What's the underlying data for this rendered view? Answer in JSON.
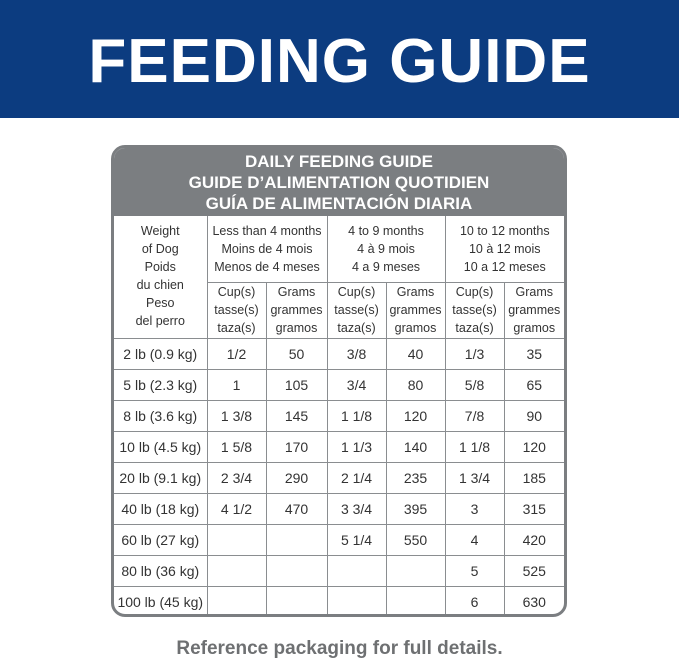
{
  "header": {
    "title": "FEEDING GUIDE"
  },
  "table": {
    "title_lines": [
      "DAILY FEEDING GUIDE",
      "GUIDE D’ALIMENTATION QUOTIDIEN",
      "GUÍA DE ALIMENTACIÓN DIARIA"
    ],
    "weight_header": [
      "Weight",
      "of Dog",
      "Poids",
      "du chien",
      "Peso",
      "del perro"
    ],
    "age_groups": [
      [
        "Less than 4 months",
        "Moins de 4 mois",
        "Menos de 4 meses"
      ],
      [
        "4 to 9 months",
        "4 à 9 mois",
        "4 a 9 meses"
      ],
      [
        "10 to 12 months",
        "10 à 12 mois",
        "10 a 12 meses"
      ]
    ],
    "unit_headers": [
      [
        "Cup(s)",
        "tasse(s)",
        "taza(s)"
      ],
      [
        "Grams",
        "grammes",
        "gramos"
      ]
    ],
    "rows": [
      [
        "2 lb (0.9 kg)",
        "1/2",
        "50",
        "3/8",
        "40",
        "1/3",
        "35"
      ],
      [
        "5 lb (2.3 kg)",
        "1",
        "105",
        "3/4",
        "80",
        "5/8",
        "65"
      ],
      [
        "8 lb (3.6 kg)",
        "1 3/8",
        "145",
        "1 1/8",
        "120",
        "7/8",
        "90"
      ],
      [
        "10 lb (4.5 kg)",
        "1 5/8",
        "170",
        "1 1/3",
        "140",
        "1 1/8",
        "120"
      ],
      [
        "20 lb (9.1 kg)",
        "2 3/4",
        "290",
        "2 1/4",
        "235",
        "1 3/4",
        "185"
      ],
      [
        "40 lb (18 kg)",
        "4 1/2",
        "470",
        "3 3/4",
        "395",
        "3",
        "315"
      ],
      [
        "60 lb (27 kg)",
        null,
        null,
        "5 1/4",
        "550",
        "4",
        "420"
      ],
      [
        "80 lb (36 kg)",
        null,
        null,
        null,
        null,
        "5",
        "525"
      ],
      [
        "100 lb (45 kg)",
        null,
        null,
        null,
        null,
        "6",
        "630"
      ]
    ]
  },
  "footer": {
    "note": "Reference packaging for full details."
  }
}
